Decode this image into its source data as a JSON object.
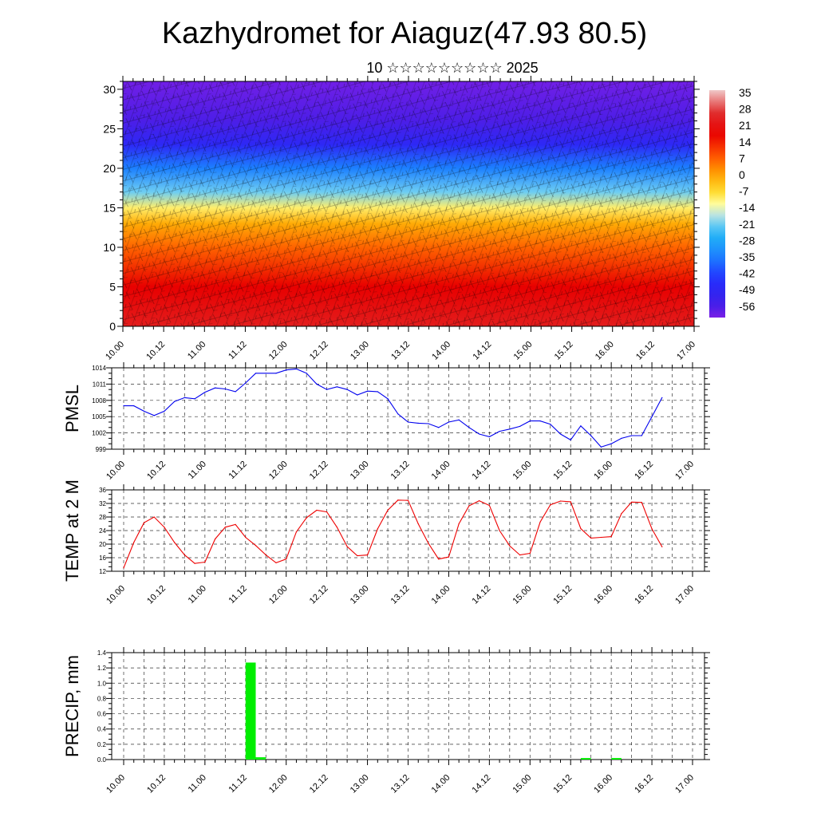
{
  "title": "Kazhydromet for Aiaguz(47.93 80.5)",
  "subtitle": "10 ☆☆☆☆☆☆☆☆☆ 2025",
  "x_ticks": [
    "10.00",
    "10.12",
    "11.00",
    "11.12",
    "12.00",
    "12.12",
    "13.00",
    "13.12",
    "14.00",
    "14.12",
    "15.00",
    "15.12",
    "16.00",
    "16.12",
    "17.00"
  ],
  "colors": {
    "pmsl_line": "#0000ee",
    "temp_line": "#ee0000",
    "precip_bar": "#00ee00"
  },
  "chart_data": [
    {
      "type": "heatmap",
      "title": "",
      "xlabel": "",
      "ylabel": "",
      "ylim": [
        0,
        31
      ],
      "y_ticks": [
        0,
        5,
        10,
        15,
        20,
        25,
        30
      ],
      "colorbar": {
        "labels": [
          "35",
          "28",
          "21",
          "14",
          "7",
          "0",
          "-7",
          "-14",
          "-21",
          "-28",
          "-35",
          "-42",
          "-49",
          "-56"
        ],
        "range": [
          -63,
          42
        ]
      },
      "profile": [
        {
          "level": 0,
          "value": 28
        },
        {
          "level": 5,
          "value": 22
        },
        {
          "level": 10,
          "value": 10
        },
        {
          "level": 13,
          "value": 2
        },
        {
          "level": 15,
          "value": -8
        },
        {
          "level": 17,
          "value": -20
        },
        {
          "level": 20,
          "value": -35
        },
        {
          "level": 23,
          "value": -50
        },
        {
          "level": 26,
          "value": -58
        },
        {
          "level": 31,
          "value": -62
        }
      ]
    },
    {
      "type": "line",
      "ylabel": "PMSL",
      "ylim": [
        999,
        1014
      ],
      "y_ticks": [
        999,
        1002,
        1005,
        1008,
        1011,
        1014
      ],
      "series": [
        {
          "x": [
            0,
            0.25,
            0.5,
            0.75,
            1,
            1.25,
            1.5,
            1.75,
            2,
            2.25,
            2.5,
            2.75,
            3,
            3.25,
            3.5,
            3.75,
            4,
            4.25,
            4.5,
            4.75,
            5,
            5.25,
            5.5,
            5.75,
            6,
            6.25,
            6.5,
            6.75,
            7,
            7.25,
            7.5,
            7.75,
            8,
            8.25,
            8.5,
            8.75,
            9,
            9.25,
            9.5,
            9.75,
            10,
            10.25,
            10.5,
            10.75,
            11,
            11.25,
            11.5,
            11.75,
            12,
            12.25,
            12.5,
            12.75,
            13,
            13.25
          ],
          "values": [
            1007,
            1007,
            1006,
            1005.2,
            1006,
            1007.8,
            1008.5,
            1008.3,
            1009.5,
            1010.3,
            1010.1,
            1009.6,
            1011.2,
            1013,
            1013,
            1013,
            1013.6,
            1013.8,
            1013,
            1011,
            1010,
            1010.5,
            1010,
            1009,
            1009.7,
            1009.6,
            1008.3,
            1005.5,
            1004,
            1003.8,
            1003.7,
            1003,
            1004,
            1004.4,
            1003,
            1001.8,
            1001.3,
            1002.3,
            1002.7,
            1003.2,
            1004.2,
            1004.2,
            1003.6,
            1001.8,
            1000.7,
            1003.3,
            1001.5,
            999.4,
            1000,
            1001,
            1001.5,
            1001.5,
            1005,
            1008.5
          ]
        }
      ]
    },
    {
      "type": "line",
      "ylabel": "TEMP at 2 M",
      "ylim": [
        12,
        36
      ],
      "y_ticks": [
        12,
        16,
        20,
        24,
        28,
        32,
        36
      ],
      "series": [
        {
          "x": [
            0,
            0.25,
            0.5,
            0.75,
            1,
            1.25,
            1.5,
            1.75,
            2,
            2.25,
            2.5,
            2.75,
            3,
            3.25,
            3.5,
            3.75,
            4,
            4.25,
            4.5,
            4.75,
            5,
            5.25,
            5.5,
            5.75,
            6,
            6.25,
            6.5,
            6.75,
            7,
            7.25,
            7.5,
            7.75,
            8,
            8.25,
            8.5,
            8.75,
            9,
            9.25,
            9.5,
            9.75,
            10,
            10.25,
            10.5,
            10.75,
            11,
            11.25,
            11.5,
            11.75,
            12,
            12.25,
            12.5,
            12.75,
            13,
            13.25
          ],
          "values": [
            13,
            20.5,
            26.3,
            28,
            25,
            20.5,
            16.8,
            14.3,
            14.7,
            21.5,
            25,
            25.8,
            22,
            19.6,
            16.8,
            14.5,
            15.6,
            23.6,
            27.8,
            30,
            29.5,
            25,
            19.3,
            16.6,
            16.8,
            24.5,
            30,
            33,
            32.9,
            26,
            20.2,
            15.6,
            16.2,
            26,
            31.3,
            32.8,
            31.4,
            24,
            19.5,
            16.8,
            17.3,
            26.5,
            31.6,
            32.7,
            32.5,
            24.6,
            21.8,
            22,
            22.2,
            29,
            32.4,
            32.3,
            24.5,
            19.2
          ]
        }
      ]
    },
    {
      "type": "bar",
      "ylabel": "PRECIP, mm",
      "ylim": [
        0,
        1.4
      ],
      "y_ticks": [
        0.0,
        0.2,
        0.4,
        0.6,
        0.8,
        1.0,
        1.2,
        1.4
      ],
      "series": [
        {
          "x": [
            3.0,
            3.25,
            11.25,
            12.0
          ],
          "values": [
            1.27,
            0.03,
            0.02,
            0.02
          ]
        }
      ]
    }
  ]
}
